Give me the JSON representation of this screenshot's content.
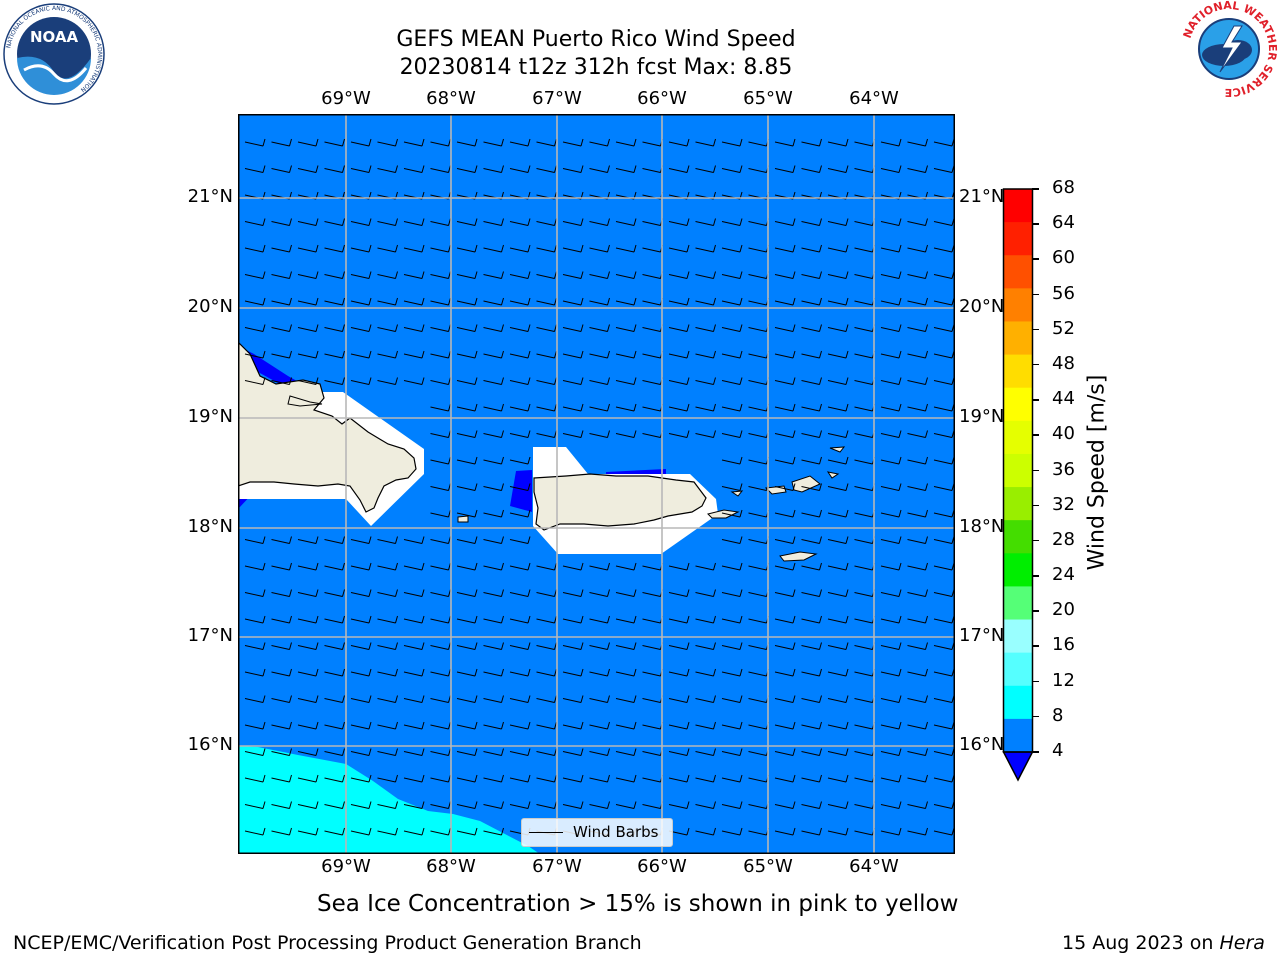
{
  "header": {
    "title_line1": "GEFS MEAN Puerto Rico Wind Speed",
    "title_line2": "20230814 t12z 312h fcst   Max: 8.85"
  },
  "logos": {
    "noaa_text": "NOAA",
    "noaa_ring_text": "NATIONAL OCEANIC AND ATMOSPHERIC ADMINISTRATION",
    "noaa_ring_bottom": "U.S. DEPARTMENT OF COMMERCE",
    "nws_ring_text": "NATIONAL WEATHER SERVICE"
  },
  "map": {
    "lon_labels": [
      "69°W",
      "68°W",
      "67°W",
      "66°W",
      "65°W",
      "64°W"
    ],
    "lat_labels": [
      "21°N",
      "20°N",
      "19°N",
      "18°N",
      "17°N",
      "16°N"
    ],
    "legend_label": "Wind Barbs",
    "ocean_color": "#0080ff",
    "low_wind_color": "#00ffff",
    "land_color": "#efedde"
  },
  "colorbar": {
    "label": "Wind Speed [m/s]",
    "ticks": [
      "68",
      "64",
      "60",
      "56",
      "52",
      "48",
      "44",
      "40",
      "36",
      "32",
      "28",
      "24",
      "20",
      "16",
      "12",
      "8",
      "4"
    ],
    "colors": [
      "#ff0000",
      "#ff2000",
      "#ff5000",
      "#ff8000",
      "#ffb000",
      "#ffdd00",
      "#ffff00",
      "#e5ff00",
      "#ccff00",
      "#99ee00",
      "#44dd00",
      "#00ee00",
      "#55ff77",
      "#99ffff",
      "#55ffff",
      "#00ffff",
      "#0080ff"
    ],
    "under_color": "#0000ff"
  },
  "footer": {
    "sea_ice_note": "Sea Ice Concentration > 15% is shown in pink to yellow",
    "branch": "NCEP/EMC/Verification Post Processing Product Generation Branch",
    "date": "15 Aug 2023 on ",
    "machine": "Hera"
  }
}
